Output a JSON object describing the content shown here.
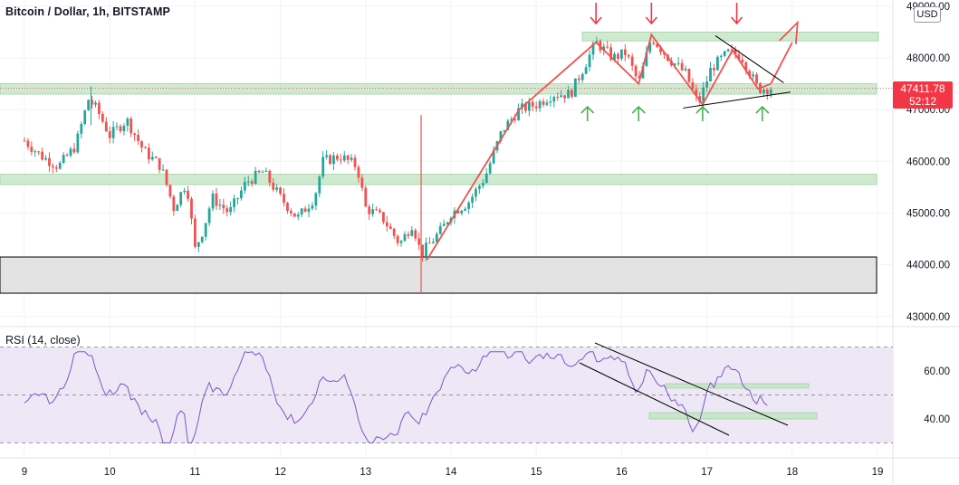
{
  "header": {
    "title": "Bitcoin / Dollar, 1h, BITSTAMP",
    "currency_button": "USD",
    "last_price": "47411.78",
    "countdown": "52:12"
  },
  "rsi": {
    "title": "RSI (14, close)",
    "ticks": [
      "60.00",
      "40.00"
    ]
  },
  "colors": {
    "up": "#26a69a",
    "down": "#ef5350",
    "zone": "#c8e6c9",
    "zone_border": "#81c784",
    "arrow_red": "#f23645",
    "arrow_green": "#4caf50",
    "rsi_line": "#7e57c2",
    "rsi_band": "#ede7f6",
    "pattern_line": "#ef5350",
    "trend_line": "#000000"
  },
  "chart_data": {
    "type": "candlestick",
    "title": "Bitcoin / Dollar, 1h, BITSTAMP",
    "x_ticks": [
      "9",
      "10",
      "11",
      "12",
      "13",
      "14",
      "15",
      "16",
      "17",
      "18",
      "19"
    ],
    "y_ticks": [
      "49000.00",
      "48000.00",
      "47000.00",
      "46000.00",
      "45000.00",
      "44000.00",
      "43000.00"
    ],
    "ylim": [
      42900,
      49100
    ],
    "last_price": 47411.78,
    "zones": [
      {
        "kind": "resistance",
        "from": 48330,
        "to": 48500
      },
      {
        "kind": "support",
        "from": 47300,
        "to": 47500
      },
      {
        "kind": "support",
        "from": 45550,
        "to": 45750
      },
      {
        "kind": "demand",
        "from": 43450,
        "to": 44150
      }
    ],
    "close_path": [
      {
        "x": 9.0,
        "y": 46400
      },
      {
        "x": 9.2,
        "y": 46100
      },
      {
        "x": 9.4,
        "y": 45900
      },
      {
        "x": 9.6,
        "y": 46300
      },
      {
        "x": 9.75,
        "y": 47200
      },
      {
        "x": 9.85,
        "y": 47000
      },
      {
        "x": 10.0,
        "y": 46500
      },
      {
        "x": 10.2,
        "y": 46800
      },
      {
        "x": 10.4,
        "y": 46200
      },
      {
        "x": 10.6,
        "y": 45900
      },
      {
        "x": 10.75,
        "y": 45100
      },
      {
        "x": 10.9,
        "y": 45600
      },
      {
        "x": 11.0,
        "y": 44300
      },
      {
        "x": 11.1,
        "y": 44700
      },
      {
        "x": 11.2,
        "y": 45300
      },
      {
        "x": 11.4,
        "y": 45000
      },
      {
        "x": 11.6,
        "y": 45600
      },
      {
        "x": 11.8,
        "y": 45800
      },
      {
        "x": 12.0,
        "y": 45300
      },
      {
        "x": 12.2,
        "y": 44900
      },
      {
        "x": 12.4,
        "y": 45300
      },
      {
        "x": 12.5,
        "y": 46000
      },
      {
        "x": 12.7,
        "y": 46100
      },
      {
        "x": 12.9,
        "y": 45900
      },
      {
        "x": 13.0,
        "y": 45100
      },
      {
        "x": 13.2,
        "y": 44900
      },
      {
        "x": 13.4,
        "y": 44400
      },
      {
        "x": 13.55,
        "y": 44800
      },
      {
        "x": 13.65,
        "y": 44200
      },
      {
        "x": 13.75,
        "y": 44400
      },
      {
        "x": 13.9,
        "y": 44700
      },
      {
        "x": 14.0,
        "y": 45000
      },
      {
        "x": 14.2,
        "y": 45200
      },
      {
        "x": 14.4,
        "y": 45700
      },
      {
        "x": 14.6,
        "y": 46600
      },
      {
        "x": 14.8,
        "y": 47000
      },
      {
        "x": 15.0,
        "y": 47100
      },
      {
        "x": 15.2,
        "y": 47300
      },
      {
        "x": 15.4,
        "y": 47300
      },
      {
        "x": 15.55,
        "y": 47800
      },
      {
        "x": 15.7,
        "y": 48300
      },
      {
        "x": 15.9,
        "y": 48000
      },
      {
        "x": 16.05,
        "y": 48100
      },
      {
        "x": 16.2,
        "y": 47500
      },
      {
        "x": 16.35,
        "y": 48400
      },
      {
        "x": 16.55,
        "y": 48000
      },
      {
        "x": 16.75,
        "y": 47700
      },
      {
        "x": 16.9,
        "y": 47100
      },
      {
        "x": 17.05,
        "y": 47800
      },
      {
        "x": 17.25,
        "y": 48100
      },
      {
        "x": 17.4,
        "y": 48050
      },
      {
        "x": 17.6,
        "y": 47400
      },
      {
        "x": 17.75,
        "y": 47420
      }
    ],
    "rsi": {
      "ylim": [
        28,
        72
      ],
      "levels": [
        70,
        50,
        30
      ],
      "ticks": [
        60,
        40
      ]
    }
  }
}
